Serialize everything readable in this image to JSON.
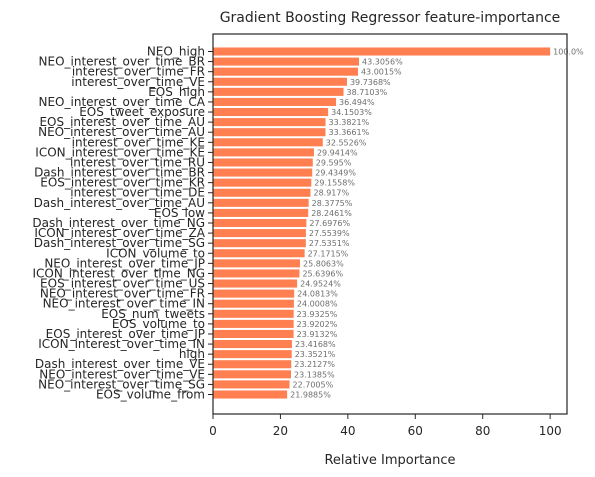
{
  "chart_data": {
    "type": "bar",
    "orientation": "horizontal",
    "title": "Gradient Boosting Regressor feature-importance",
    "xlabel": "Relative Importance",
    "ylabel": "",
    "xlim": [
      0,
      105
    ],
    "xticks": [
      0,
      20,
      40,
      60,
      80,
      100
    ],
    "bar_color": "#ff7f50",
    "grid": false,
    "categories": [
      "NEO_high",
      "NEO_interest_over_time_BR",
      "interest_over_time_FR",
      "interest_over_time_VE",
      "EOS_high",
      "NEO_interest_over_time_CA",
      "EOS_tweet_exposure",
      "EOS_interest_over_time_AU",
      "NEO_interest_over_time_AU",
      "interest_over_time_KE",
      "ICON_interest_over_time_KE",
      "interest_over_time_RU",
      "Dash_interest_over_time_BR",
      "EOS_interest_over_time_KR",
      "interest_over_time_DE",
      "Dash_interest_over_time_AU",
      "EOS_low",
      "Dash_interest_over_time_NG",
      "ICON_interest_over_time_ZA",
      "Dash_interest_over_time_SG",
      "ICON_volume_to",
      "NEO_interest_over_time_JP",
      "ICON_interest_over_time_NG",
      "EOS_interest_over_time_US",
      "NEO_interest_over_time_FR",
      "NEO_interest_over_time_IN",
      "EOS_num_tweets",
      "EOS_volume_to",
      "EOS_interest_over_time_JP",
      "ICON_interest_over_time_IN",
      "high",
      "Dash_interest_over_time_VE",
      "NEO_interest_over_time_VE",
      "NEO_interest_over_time_SG",
      "EOS_volume_from"
    ],
    "values": [
      100.0,
      43.3056,
      43.0015,
      39.7368,
      38.7103,
      36.494,
      34.1503,
      33.3821,
      33.3661,
      32.5526,
      29.9414,
      29.595,
      29.4349,
      29.1558,
      28.917,
      28.3775,
      28.2461,
      27.6976,
      27.5539,
      27.5351,
      27.1715,
      25.8063,
      25.6396,
      24.9524,
      24.0813,
      24.0008,
      23.9325,
      23.9202,
      23.9132,
      23.4168,
      23.3521,
      23.2127,
      23.1385,
      22.7005,
      21.9885
    ],
    "data_labels": [
      "100.0%",
      "43.3056%",
      "43.0015%",
      "39.7368%",
      "38.7103%",
      "36.494%",
      "34.1503%",
      "33.3821%",
      "33.3661%",
      "32.5526%",
      "29.9414%",
      "29.595%",
      "29.4349%",
      "29.1558%",
      "28.917%",
      "28.3775%",
      "28.2461%",
      "27.6976%",
      "27.5539%",
      "27.5351%",
      "27.1715%",
      "25.8063%",
      "25.6396%",
      "24.9524%",
      "24.0813%",
      "24.0008%",
      "23.9325%",
      "23.9202%",
      "23.9132%",
      "23.4168%",
      "23.3521%",
      "23.2127%",
      "23.1385%",
      "22.7005%",
      "21.9885%"
    ]
  }
}
